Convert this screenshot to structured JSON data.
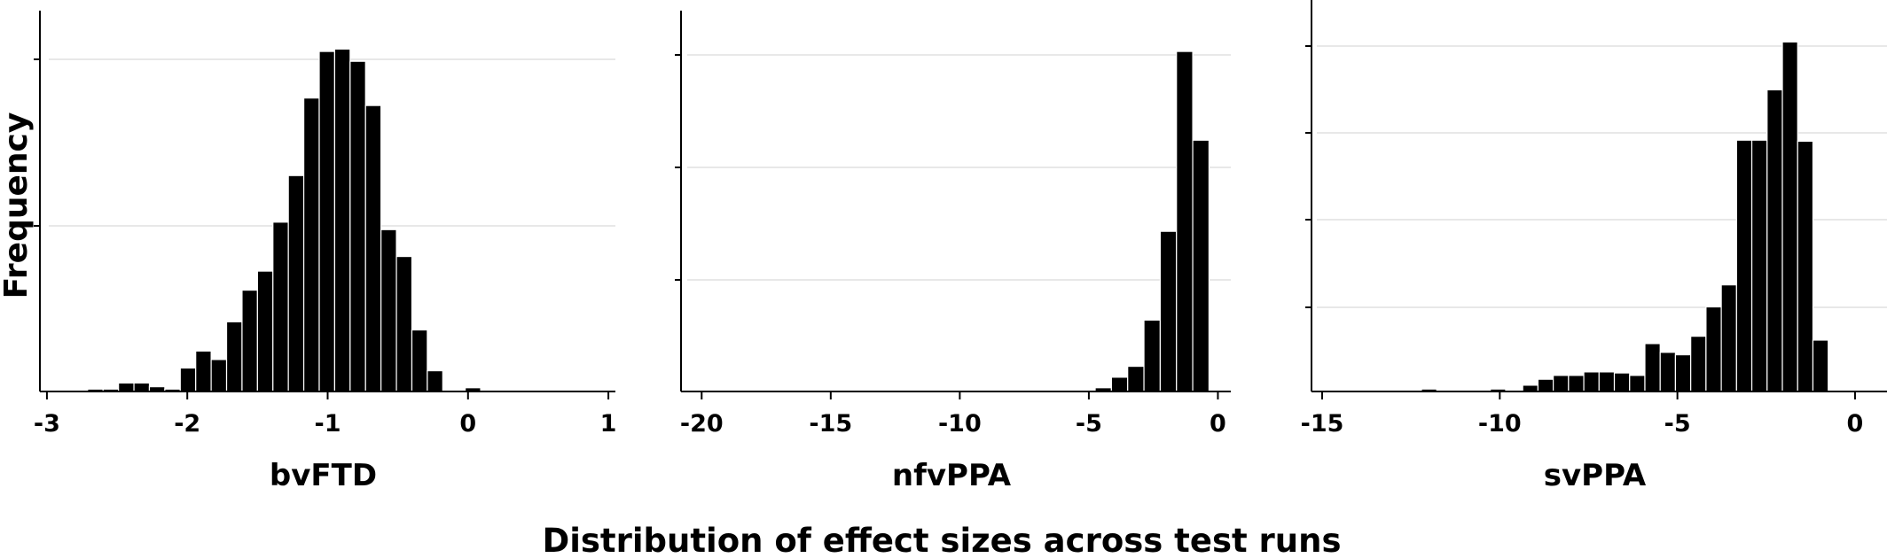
{
  "figure": {
    "ylabel": "Frequency",
    "caption": "Distribution of effect sizes across test runs"
  },
  "chart_data": [
    {
      "type": "bar",
      "xlabel": "bvFTD",
      "ylabel": "Frequency",
      "xlim": [
        -3.05,
        1.05
      ],
      "ylim": [
        0,
        1.12
      ],
      "xticks": [
        -3,
        -2,
        -1,
        0,
        1
      ],
      "grid": "horizontal",
      "bin_width": 0.11,
      "bins": [
        {
          "x": -2.655,
          "value": 0.007
        },
        {
          "x": -2.545,
          "value": 0.007
        },
        {
          "x": -2.435,
          "value": 0.025
        },
        {
          "x": -2.325,
          "value": 0.025
        },
        {
          "x": -2.215,
          "value": 0.014
        },
        {
          "x": -2.105,
          "value": 0.007
        },
        {
          "x": -1.995,
          "value": 0.069
        },
        {
          "x": -1.885,
          "value": 0.119
        },
        {
          "x": -1.775,
          "value": 0.094
        },
        {
          "x": -1.665,
          "value": 0.205
        },
        {
          "x": -1.555,
          "value": 0.298
        },
        {
          "x": -1.445,
          "value": 0.354
        },
        {
          "x": -1.335,
          "value": 0.498
        },
        {
          "x": -1.225,
          "value": 0.635
        },
        {
          "x": -1.115,
          "value": 0.863
        },
        {
          "x": -1.005,
          "value": 1.0
        },
        {
          "x": -0.895,
          "value": 1.007
        },
        {
          "x": -0.785,
          "value": 0.971
        },
        {
          "x": -0.675,
          "value": 0.841
        },
        {
          "x": -0.565,
          "value": 0.476
        },
        {
          "x": -0.455,
          "value": 0.397
        },
        {
          "x": -0.345,
          "value": 0.181
        },
        {
          "x": -0.235,
          "value": 0.061
        },
        {
          "x": 0.035,
          "value": 0.011
        }
      ]
    },
    {
      "type": "bar",
      "xlabel": "nfvPPA",
      "ylabel": "Frequency",
      "xlim": [
        -20.8,
        0.5
      ],
      "ylim": [
        0,
        1.12
      ],
      "xticks": [
        -20,
        -15,
        -10,
        -5,
        0
      ],
      "grid": "horizontal",
      "bin_width": 0.63,
      "bins": [
        {
          "x": -5.7,
          "value": 0.004
        },
        {
          "x": -5.07,
          "value": 0.004
        },
        {
          "x": -4.44,
          "value": 0.011
        },
        {
          "x": -3.81,
          "value": 0.042
        },
        {
          "x": -3.18,
          "value": 0.074
        },
        {
          "x": -2.55,
          "value": 0.21
        },
        {
          "x": -1.92,
          "value": 0.471
        },
        {
          "x": -1.29,
          "value": 1.0
        },
        {
          "x": -0.66,
          "value": 0.739
        }
      ]
    },
    {
      "type": "bar",
      "xlabel": "svPPA",
      "ylabel": "Frequency",
      "xlim": [
        -15.3,
        0.9
      ],
      "ylim": [
        0,
        1.12
      ],
      "xticks": [
        -15,
        -10,
        -5,
        0
      ],
      "grid": "horizontal",
      "bin_width": 0.43,
      "bins": [
        {
          "x": -11.99,
          "value": 0.007
        },
        {
          "x": -10.05,
          "value": 0.007
        },
        {
          "x": -9.14,
          "value": 0.018
        },
        {
          "x": -8.71,
          "value": 0.035
        },
        {
          "x": -8.28,
          "value": 0.046
        },
        {
          "x": -7.85,
          "value": 0.046
        },
        {
          "x": -7.42,
          "value": 0.056
        },
        {
          "x": -6.99,
          "value": 0.056
        },
        {
          "x": -6.56,
          "value": 0.053
        },
        {
          "x": -6.13,
          "value": 0.046
        },
        {
          "x": -5.7,
          "value": 0.137
        },
        {
          "x": -5.27,
          "value": 0.112
        },
        {
          "x": -4.84,
          "value": 0.105
        },
        {
          "x": -4.41,
          "value": 0.158
        },
        {
          "x": -3.98,
          "value": 0.242
        },
        {
          "x": -3.55,
          "value": 0.305
        },
        {
          "x": -3.12,
          "value": 0.719
        },
        {
          "x": -2.69,
          "value": 0.719
        },
        {
          "x": -2.26,
          "value": 0.863
        },
        {
          "x": -1.83,
          "value": 1.0
        },
        {
          "x": -1.4,
          "value": 0.716
        },
        {
          "x": -0.97,
          "value": 0.147
        }
      ]
    }
  ]
}
